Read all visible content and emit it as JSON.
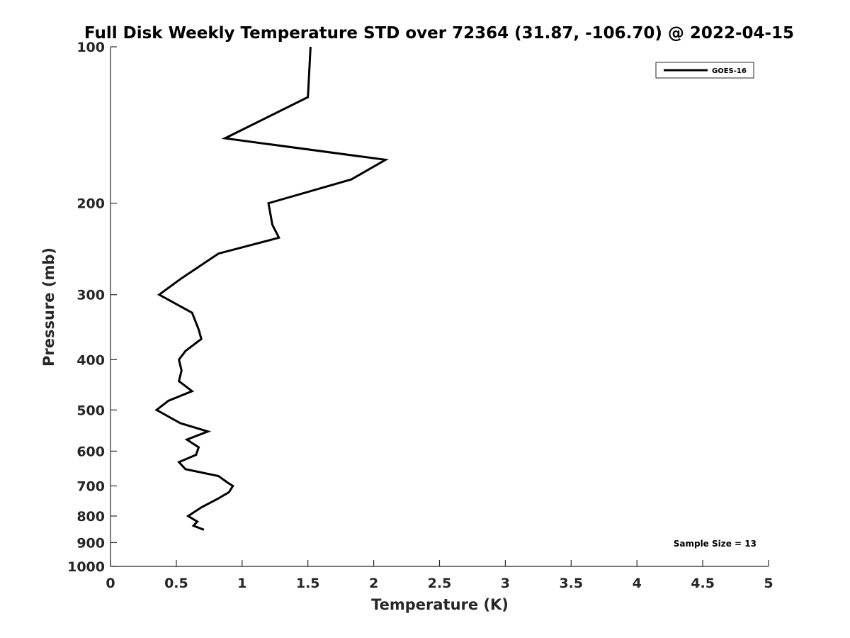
{
  "chart_data": {
    "type": "line",
    "title": "Full Disk Weekly Temperature STD over 72364 (31.87, -106.70) @ 2022-04-15",
    "xlabel": "Temperature (K)",
    "ylabel": "Pressure (mb)",
    "xlim": [
      0,
      5
    ],
    "ylim": [
      100,
      1000
    ],
    "y_scale": "log",
    "y_reversed": true,
    "grid": false,
    "legend_position": "top-right",
    "x_ticks": [
      "0",
      "0.5",
      "1",
      "1.5",
      "2",
      "2.5",
      "3",
      "3.5",
      "4",
      "4.5",
      "5"
    ],
    "y_ticks": [
      "100",
      "200",
      "300",
      "400",
      "500",
      "600",
      "700",
      "800",
      "900",
      "1000"
    ],
    "annotation": "Sample Size = 13",
    "series": [
      {
        "name": "GOES-16",
        "color": "#000000",
        "points": [
          {
            "x": 1.52,
            "y": 100
          },
          {
            "x": 1.5,
            "y": 125
          },
          {
            "x": 0.87,
            "y": 150
          },
          {
            "x": 2.09,
            "y": 165
          },
          {
            "x": 1.83,
            "y": 180
          },
          {
            "x": 1.2,
            "y": 200
          },
          {
            "x": 1.23,
            "y": 220
          },
          {
            "x": 1.28,
            "y": 233
          },
          {
            "x": 0.82,
            "y": 250
          },
          {
            "x": 0.53,
            "y": 280
          },
          {
            "x": 0.37,
            "y": 300
          },
          {
            "x": 0.62,
            "y": 325
          },
          {
            "x": 0.67,
            "y": 350
          },
          {
            "x": 0.69,
            "y": 365
          },
          {
            "x": 0.57,
            "y": 385
          },
          {
            "x": 0.52,
            "y": 400
          },
          {
            "x": 0.54,
            "y": 420
          },
          {
            "x": 0.52,
            "y": 440
          },
          {
            "x": 0.62,
            "y": 460
          },
          {
            "x": 0.44,
            "y": 480
          },
          {
            "x": 0.35,
            "y": 500
          },
          {
            "x": 0.53,
            "y": 530
          },
          {
            "x": 0.74,
            "y": 550
          },
          {
            "x": 0.58,
            "y": 570
          },
          {
            "x": 0.67,
            "y": 590
          },
          {
            "x": 0.65,
            "y": 610
          },
          {
            "x": 0.52,
            "y": 630
          },
          {
            "x": 0.57,
            "y": 650
          },
          {
            "x": 0.82,
            "y": 670
          },
          {
            "x": 0.89,
            "y": 690
          },
          {
            "x": 0.93,
            "y": 700
          },
          {
            "x": 0.9,
            "y": 720
          },
          {
            "x": 0.82,
            "y": 740
          },
          {
            "x": 0.69,
            "y": 770
          },
          {
            "x": 0.59,
            "y": 800
          },
          {
            "x": 0.66,
            "y": 820
          },
          {
            "x": 0.63,
            "y": 835
          },
          {
            "x": 0.71,
            "y": 850
          }
        ]
      }
    ]
  }
}
